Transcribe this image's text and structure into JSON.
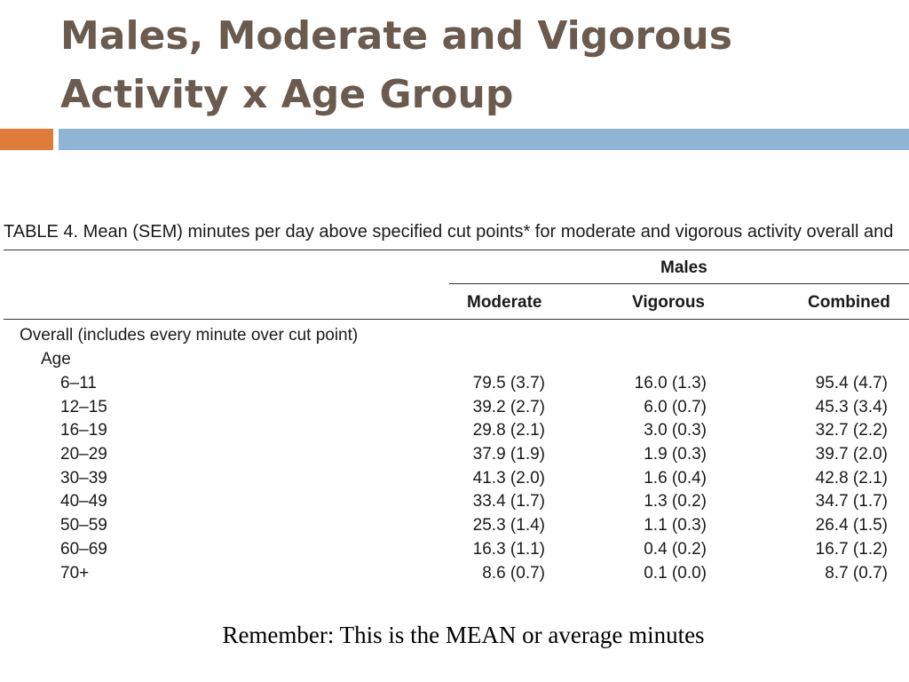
{
  "slide": {
    "title": "Males, Moderate and Vigorous Activity x Age Group",
    "note": "Remember: This is the MEAN or average minutes"
  },
  "colors": {
    "title": "#6b5a4e",
    "accent_orange": "#e07b39",
    "accent_blue": "#8fb4d4"
  },
  "table": {
    "caption": "TABLE 4. Mean (SEM) minutes per day above specified cut points* for moderate and vigorous activity overall and",
    "group_header": "Males",
    "columns": [
      "Moderate",
      "Vigorous",
      "Combined"
    ],
    "section_label": "Overall (includes every minute over cut point)",
    "subsection_label": "Age",
    "rows": [
      {
        "age": "6–11",
        "moderate": "79.5 (3.7)",
        "vigorous": "16.0 (1.3)",
        "combined": "95.4 (4.7)"
      },
      {
        "age": "12–15",
        "moderate": "39.2 (2.7)",
        "vigorous": "6.0 (0.7)",
        "combined": "45.3 (3.4)"
      },
      {
        "age": "16–19",
        "moderate": "29.8 (2.1)",
        "vigorous": "3.0 (0.3)",
        "combined": "32.7 (2.2)"
      },
      {
        "age": "20–29",
        "moderate": "37.9 (1.9)",
        "vigorous": "1.9 (0.3)",
        "combined": "39.7 (2.0)"
      },
      {
        "age": "30–39",
        "moderate": "41.3 (2.0)",
        "vigorous": "1.6 (0.4)",
        "combined": "42.8 (2.1)"
      },
      {
        "age": "40–49",
        "moderate": "33.4 (1.7)",
        "vigorous": "1.3 (0.2)",
        "combined": "34.7 (1.7)"
      },
      {
        "age": "50–59",
        "moderate": "25.3 (1.4)",
        "vigorous": "1.1 (0.3)",
        "combined": "26.4 (1.5)"
      },
      {
        "age": "60–69",
        "moderate": "16.3 (1.1)",
        "vigorous": "0.4 (0.2)",
        "combined": "16.7 (1.2)"
      },
      {
        "age": "70+",
        "moderate": "8.6 (0.7)",
        "vigorous": "0.1 (0.0)",
        "combined": "8.7 (0.7)"
      }
    ]
  }
}
